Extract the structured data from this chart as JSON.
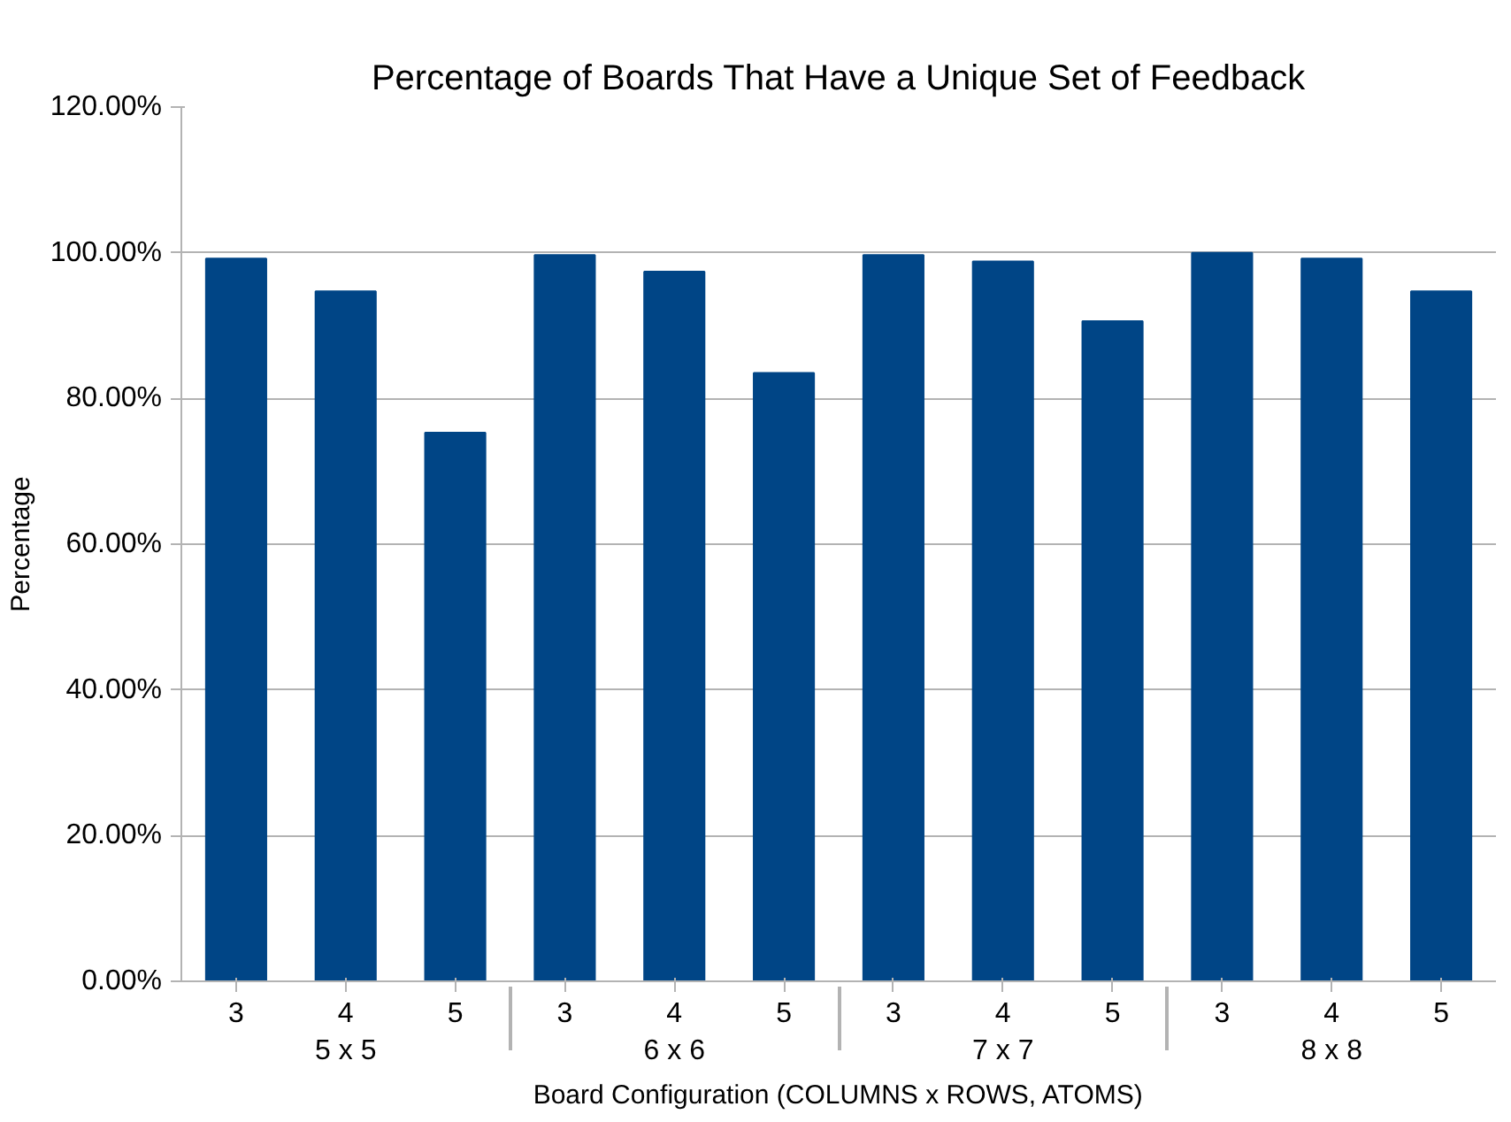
{
  "chart_data": {
    "type": "bar",
    "title": "Percentage of Boards That Have a Unique Set of Feedback",
    "xlabel": "Board Configuration (COLUMNS x ROWS, ATOMS)",
    "ylabel": "Percentage",
    "categories": [
      "3",
      "4",
      "5",
      "3",
      "4",
      "5",
      "3",
      "4",
      "5",
      "3",
      "4",
      "5"
    ],
    "annotations": [
      "5 x 5",
      "6 x 6",
      "7 x 7",
      "8 x 8"
    ],
    "values": [
      99.2,
      94.7,
      75.3,
      99.7,
      97.4,
      83.5,
      99.7,
      98.8,
      90.6,
      100.0,
      99.2,
      94.7
    ],
    "color": "#004586",
    "ylim": [
      0,
      120
    ],
    "yticks": [
      {
        "value": 0,
        "label": "0.00%"
      },
      {
        "value": 20,
        "label": "20.00%"
      },
      {
        "value": 40,
        "label": "40.00%"
      },
      {
        "value": 60,
        "label": "60.00%"
      },
      {
        "value": 80,
        "label": "80.00%"
      },
      {
        "value": 100,
        "label": "100.00%"
      },
      {
        "value": 120,
        "label": "120.00%"
      }
    ],
    "grid": "y"
  }
}
